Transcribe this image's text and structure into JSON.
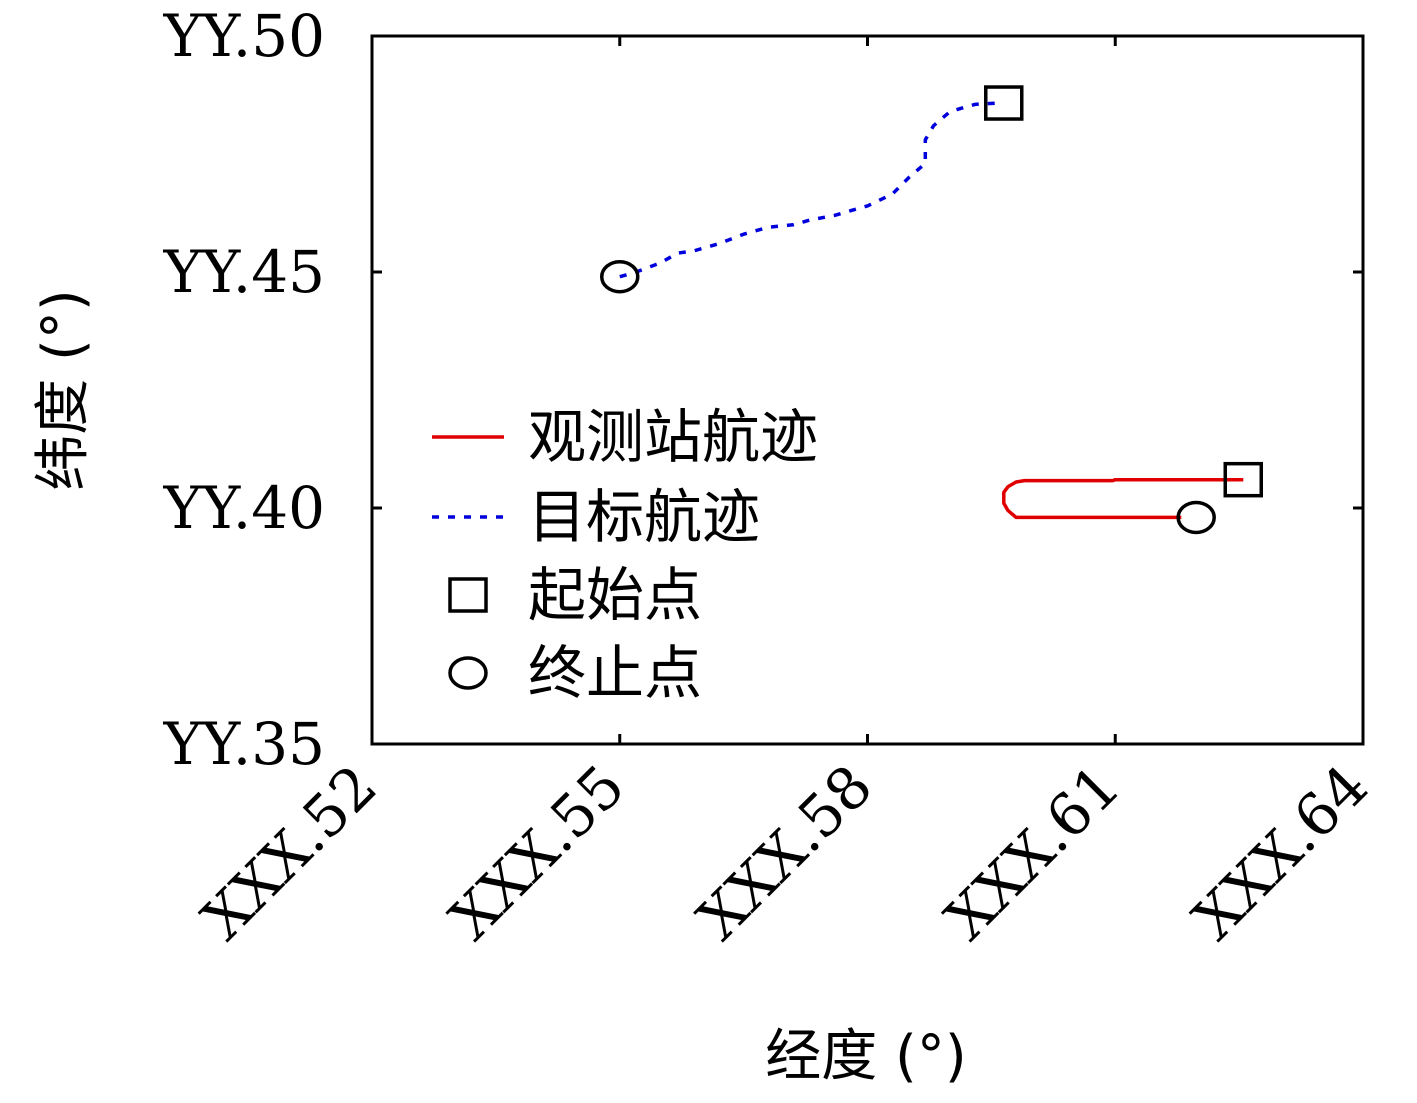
{
  "chart_data": {
    "type": "line",
    "xlabel": "经度 (°)",
    "ylabel": "纬度 (°)",
    "xlim": [
      0.52,
      0.64
    ],
    "ylim": [
      0.35,
      0.5
    ],
    "x_ticks": [
      {
        "value": 0.52,
        "label": "XXX.52"
      },
      {
        "value": 0.55,
        "label": "XXX.55"
      },
      {
        "value": 0.58,
        "label": "XXX.58"
      },
      {
        "value": 0.61,
        "label": "XXX.61"
      },
      {
        "value": 0.64,
        "label": "XXX.64"
      }
    ],
    "y_ticks": [
      {
        "value": 0.5,
        "label": "YY.50"
      },
      {
        "value": 0.45,
        "label": "YY.45"
      },
      {
        "value": 0.4,
        "label": "YY.40"
      },
      {
        "value": 0.35,
        "label": "YY.35"
      }
    ],
    "grid": false,
    "legend_position": "center-left",
    "series": [
      {
        "name": "观测站航迹",
        "color": "#e00000",
        "style": "solid",
        "x": [
          0.6255,
          0.618,
          0.61,
          0.6097,
          0.599,
          0.598,
          0.597,
          0.5965,
          0.5965,
          0.597,
          0.598,
          0.608,
          0.618
        ],
        "y": [
          0.406,
          0.406,
          0.406,
          0.4058,
          0.4058,
          0.4055,
          0.4045,
          0.4033,
          0.401,
          0.3995,
          0.398,
          0.398,
          0.398
        ]
      },
      {
        "name": "目标航迹",
        "color": "#0000dd",
        "style": "dotted",
        "x": [
          0.55,
          0.552,
          0.555,
          0.557,
          0.559,
          0.562,
          0.565,
          0.568,
          0.571,
          0.573,
          0.576,
          0.578,
          0.58,
          0.583,
          0.585,
          0.587,
          0.587,
          0.588,
          0.59,
          0.593,
          0.596
        ],
        "y": [
          0.449,
          0.45,
          0.452,
          0.454,
          0.4545,
          0.456,
          0.458,
          0.4595,
          0.46,
          0.461,
          0.462,
          0.463,
          0.464,
          0.4665,
          0.47,
          0.473,
          0.478,
          0.481,
          0.484,
          0.4855,
          0.4858
        ]
      }
    ],
    "start_markers": [
      {
        "x": 0.5965,
        "y": 0.4858
      },
      {
        "x": 0.6255,
        "y": 0.406
      }
    ],
    "end_markers": [
      {
        "x": 0.55,
        "y": 0.449
      },
      {
        "x": 0.6198,
        "y": 0.398
      }
    ],
    "legend": [
      {
        "label": "观测站航迹",
        "kind": "line-solid",
        "color": "#e00000"
      },
      {
        "label": "目标航迹",
        "kind": "line-dotted",
        "color": "#0000dd"
      },
      {
        "label": "起始点",
        "kind": "square",
        "color": "#000000"
      },
      {
        "label": "终止点",
        "kind": "circle",
        "color": "#000000"
      }
    ]
  }
}
